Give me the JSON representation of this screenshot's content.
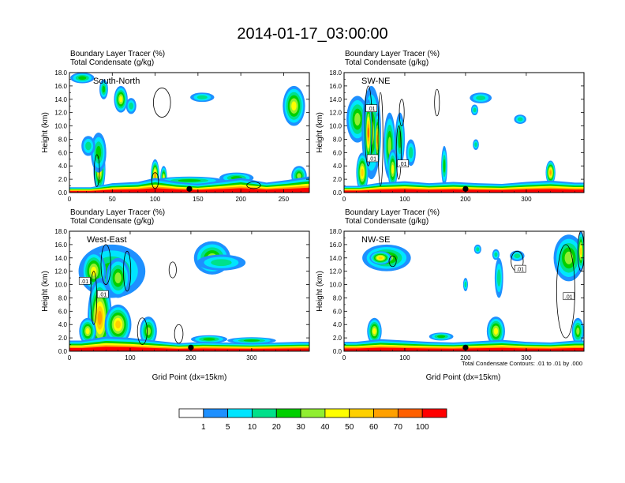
{
  "title": "2014-01-17_03:00:00",
  "colors": {
    "levels": [
      "#ffffff",
      "#1e90ff",
      "#00e5ff",
      "#00e08a",
      "#00d000",
      "#90ee30",
      "#ffff00",
      "#ffd000",
      "#ffa000",
      "#ff6000",
      "#ff0000"
    ],
    "contour": "#000000",
    "marker": "#000000"
  },
  "footnote": "Total Condensate Contours: .01 to .01 by .000",
  "colorbar": {
    "labels": [
      "1",
      "5",
      "10",
      "20",
      "30",
      "40",
      "50",
      "60",
      "70",
      "100"
    ]
  },
  "chart_data": [
    {
      "type": "heatmap",
      "id": "south-north",
      "title_line1": "Boundary Layer Tracer   (%)",
      "title_line2": "Total Condensate   (g/kg)",
      "region_label": "South-North",
      "xlabel": "",
      "ylabel": "Height (km)",
      "xlim": [
        0,
        280
      ],
      "ylim": [
        0,
        18
      ],
      "xticks": [
        0,
        50,
        100,
        150,
        200,
        250
      ],
      "yticks": [
        0.0,
        2.0,
        4.0,
        6.0,
        8.0,
        10.0,
        12.0,
        14.0,
        16.0,
        18.0
      ],
      "marker_x": 140,
      "contour_labels": [],
      "plumes": [
        {
          "x": 15,
          "y": 17.2,
          "w": 14,
          "h": 0.8,
          "v": 20
        },
        {
          "x": 40,
          "y": 15.5,
          "w": 5,
          "h": 1.5,
          "v": 20
        },
        {
          "x": 60,
          "y": 14,
          "w": 8,
          "h": 2,
          "v": 40
        },
        {
          "x": 72,
          "y": 13,
          "w": 6,
          "h": 1.2,
          "v": 10
        },
        {
          "x": 35,
          "y": 3.5,
          "w": 7,
          "h": 3.5,
          "v": 50
        },
        {
          "x": 34,
          "y": 6,
          "w": 9,
          "h": 3,
          "v": 20
        },
        {
          "x": 22,
          "y": 7,
          "w": 8,
          "h": 1.5,
          "v": 10
        },
        {
          "x": 100,
          "y": 2.5,
          "w": 5,
          "h": 2.5,
          "v": 60
        },
        {
          "x": 110,
          "y": 2.2,
          "w": 4,
          "h": 1.8,
          "v": 40
        },
        {
          "x": 155,
          "y": 14.3,
          "w": 14,
          "h": 0.7,
          "v": 10
        },
        {
          "x": 262,
          "y": 13,
          "w": 13,
          "h": 3,
          "v": 40
        },
        {
          "x": 268,
          "y": 2.5,
          "w": 9,
          "h": 1.5,
          "v": 30
        },
        {
          "x": 195,
          "y": 2.2,
          "w": 20,
          "h": 0.8,
          "v": 20
        },
        {
          "x": 140,
          "y": 1.8,
          "w": 40,
          "h": 0.6,
          "v": 20
        }
      ],
      "surface": [
        {
          "x": 25,
          "h": 0.8
        },
        {
          "x": 50,
          "h": 1.4
        },
        {
          "x": 80,
          "h": 1.6
        },
        {
          "x": 100,
          "h": 2.2
        },
        {
          "x": 125,
          "h": 1.6
        },
        {
          "x": 150,
          "h": 1.3
        },
        {
          "x": 180,
          "h": 1.8
        },
        {
          "x": 200,
          "h": 2.2
        },
        {
          "x": 230,
          "h": 1.5
        },
        {
          "x": 255,
          "h": 1.9
        },
        {
          "x": 278,
          "h": 2.4
        }
      ],
      "contours": [
        {
          "x": 108,
          "y": 13.5,
          "w": 10,
          "h": 2.2
        },
        {
          "x": 32,
          "y": 3.3,
          "w": 3,
          "h": 2.4
        },
        {
          "x": 100,
          "y": 1.8,
          "w": 4,
          "h": 1.2
        },
        {
          "x": 215,
          "y": 1.1,
          "w": 8,
          "h": 0.5
        }
      ]
    },
    {
      "type": "heatmap",
      "id": "sw-ne",
      "title_line1": "Boundary Layer Tracer   (%)",
      "title_line2": "Total Condensate   (g/kg)",
      "region_label": "SW-NE",
      "xlabel": "",
      "ylabel": "Height (km)",
      "xlim": [
        0,
        395
      ],
      "ylim": [
        0,
        18
      ],
      "xticks": [
        0,
        100,
        200,
        300
      ],
      "yticks": [
        0.0,
        2.0,
        4.0,
        6.0,
        8.0,
        10.0,
        12.0,
        14.0,
        16.0,
        18.0
      ],
      "marker_x": 200,
      "contour_labels": [
        {
          "x": 45,
          "y": 12.6,
          "text": ".01"
        },
        {
          "x": 47,
          "y": 5.1,
          "text": ".01"
        },
        {
          "x": 97,
          "y": 4.3,
          "text": ".01"
        }
      ],
      "plumes": [
        {
          "x": 22,
          "y": 11,
          "w": 18,
          "h": 3.5,
          "v": 30
        },
        {
          "x": 45,
          "y": 9,
          "w": 16,
          "h": 7,
          "v": 30
        },
        {
          "x": 40,
          "y": 9,
          "w": 6,
          "h": 5,
          "v": 70
        },
        {
          "x": 55,
          "y": 8,
          "w": 5,
          "h": 4,
          "v": 60
        },
        {
          "x": 75,
          "y": 7,
          "w": 10,
          "h": 5,
          "v": 30
        },
        {
          "x": 92,
          "y": 8,
          "w": 8,
          "h": 4,
          "v": 20
        },
        {
          "x": 30,
          "y": 3,
          "w": 10,
          "h": 3,
          "v": 50
        },
        {
          "x": 80,
          "y": 3.5,
          "w": 8,
          "h": 3,
          "v": 40
        },
        {
          "x": 165,
          "y": 4,
          "w": 5,
          "h": 3,
          "v": 20
        },
        {
          "x": 225,
          "y": 14.2,
          "w": 18,
          "h": 0.8,
          "v": 10
        },
        {
          "x": 215,
          "y": 12.4,
          "w": 6,
          "h": 0.8,
          "v": 10
        },
        {
          "x": 290,
          "y": 11,
          "w": 10,
          "h": 0.7,
          "v": 10
        },
        {
          "x": 217,
          "y": 7.2,
          "w": 5,
          "h": 0.8,
          "v": 10
        },
        {
          "x": 340,
          "y": 3,
          "w": 8,
          "h": 1.8,
          "v": 60
        },
        {
          "x": 110,
          "y": 6,
          "w": 8,
          "h": 2,
          "v": 10
        }
      ],
      "surface": [
        {
          "x": 25,
          "h": 1.0
        },
        {
          "x": 60,
          "h": 1.5
        },
        {
          "x": 100,
          "h": 1.7
        },
        {
          "x": 140,
          "h": 1.4
        },
        {
          "x": 180,
          "h": 1.6
        },
        {
          "x": 220,
          "h": 1.4
        },
        {
          "x": 260,
          "h": 1.3
        },
        {
          "x": 300,
          "h": 1.6
        },
        {
          "x": 340,
          "h": 1.8
        },
        {
          "x": 380,
          "h": 1.5
        }
      ],
      "contours": [
        {
          "x": 40,
          "y": 10,
          "w": 6,
          "h": 6
        },
        {
          "x": 60,
          "y": 8,
          "w": 4,
          "h": 7
        },
        {
          "x": 90,
          "y": 6,
          "w": 4,
          "h": 4
        },
        {
          "x": 95,
          "y": 12,
          "w": 4,
          "h": 2
        },
        {
          "x": 153,
          "y": 13.5,
          "w": 4,
          "h": 2
        }
      ]
    },
    {
      "type": "heatmap",
      "id": "west-east",
      "title_line1": "Boundary Layer Tracer   (%)",
      "title_line2": "Total Condensate   (g/kg)",
      "region_label": "West-East",
      "xlabel": "Grid Point (dx=15km)",
      "ylabel": "Height (km)",
      "xlim": [
        0,
        395
      ],
      "ylim": [
        0,
        18
      ],
      "xticks": [
        0,
        100,
        200,
        300
      ],
      "yticks": [
        0.0,
        2.0,
        4.0,
        6.0,
        8.0,
        10.0,
        12.0,
        14.0,
        16.0,
        18.0
      ],
      "marker_x": 200,
      "contour_labels": [
        {
          "x": 25,
          "y": 10.5,
          "text": ".01"
        },
        {
          "x": 55,
          "y": 8.5,
          "text": ".01"
        }
      ],
      "plumes": [
        {
          "x": 70,
          "y": 12,
          "w": 55,
          "h": 4,
          "v": 20
        },
        {
          "x": 40,
          "y": 12,
          "w": 20,
          "h": 3,
          "v": 40
        },
        {
          "x": 80,
          "y": 11,
          "w": 20,
          "h": 3,
          "v": 30
        },
        {
          "x": 50,
          "y": 5,
          "w": 20,
          "h": 6,
          "v": 60
        },
        {
          "x": 80,
          "y": 4,
          "w": 22,
          "h": 3,
          "v": 50
        },
        {
          "x": 30,
          "y": 3,
          "w": 14,
          "h": 2,
          "v": 40
        },
        {
          "x": 130,
          "y": 3,
          "w": 14,
          "h": 2.2,
          "v": 30
        },
        {
          "x": 235,
          "y": 14,
          "w": 30,
          "h": 2.5,
          "v": 30
        },
        {
          "x": 250,
          "y": 13.3,
          "w": 40,
          "h": 1.2,
          "v": 10
        },
        {
          "x": 230,
          "y": 1.8,
          "w": 30,
          "h": 0.6,
          "v": 20
        },
        {
          "x": 300,
          "y": 1.6,
          "w": 40,
          "h": 0.5,
          "v": 20
        }
      ],
      "surface": [
        {
          "x": 20,
          "h": 1.6
        },
        {
          "x": 60,
          "h": 2.2
        },
        {
          "x": 100,
          "h": 2.0
        },
        {
          "x": 140,
          "h": 1.6
        },
        {
          "x": 180,
          "h": 1.2
        },
        {
          "x": 220,
          "h": 1.4
        },
        {
          "x": 260,
          "h": 1.3
        },
        {
          "x": 300,
          "h": 1.2
        },
        {
          "x": 340,
          "h": 1.3
        },
        {
          "x": 380,
          "h": 1.4
        }
      ],
      "contours": [
        {
          "x": 60,
          "y": 13,
          "w": 8,
          "h": 3
        },
        {
          "x": 40,
          "y": 8,
          "w": 5,
          "h": 4
        },
        {
          "x": 95,
          "y": 12,
          "w": 6,
          "h": 3
        },
        {
          "x": 170,
          "y": 12.2,
          "w": 6,
          "h": 1.2
        },
        {
          "x": 120,
          "y": 3,
          "w": 8,
          "h": 2
        },
        {
          "x": 180,
          "y": 2.6,
          "w": 7,
          "h": 1.4
        }
      ]
    },
    {
      "type": "heatmap",
      "id": "nw-se",
      "title_line1": "Boundary Layer Tracer   (%)",
      "title_line2": "Total Condensate   (g/kg)",
      "region_label": "NW-SE",
      "xlabel": "Grid Point (dx=15km)",
      "ylabel": "Height (km)",
      "xlim": [
        0,
        395
      ],
      "ylim": [
        0,
        18
      ],
      "xticks": [
        0,
        100,
        200,
        300
      ],
      "yticks": [
        0.0,
        2.0,
        4.0,
        6.0,
        8.0,
        10.0,
        12.0,
        14.0,
        16.0,
        18.0
      ],
      "marker_x": 200,
      "contour_labels": [
        {
          "x": 290,
          "y": 12.3,
          "text": ".01"
        },
        {
          "x": 370,
          "y": 8.2,
          "text": ".01"
        }
      ],
      "plumes": [
        {
          "x": 70,
          "y": 14,
          "w": 40,
          "h": 2,
          "v": 30
        },
        {
          "x": 60,
          "y": 14,
          "w": 18,
          "h": 1,
          "v": 50
        },
        {
          "x": 370,
          "y": 14,
          "w": 25,
          "h": 3.5,
          "v": 30
        },
        {
          "x": 390,
          "y": 15,
          "w": 6,
          "h": 3,
          "v": 50
        },
        {
          "x": 285,
          "y": 14.3,
          "w": 12,
          "h": 0.8,
          "v": 10
        },
        {
          "x": 220,
          "y": 15.3,
          "w": 6,
          "h": 0.7,
          "v": 10
        },
        {
          "x": 250,
          "y": 14.5,
          "w": 6,
          "h": 0.8,
          "v": 10
        },
        {
          "x": 255,
          "y": 11,
          "w": 7,
          "h": 3,
          "v": 10
        },
        {
          "x": 200,
          "y": 10,
          "w": 4,
          "h": 1,
          "v": 10
        },
        {
          "x": 50,
          "y": 3,
          "w": 12,
          "h": 2,
          "v": 40
        },
        {
          "x": 250,
          "y": 3,
          "w": 15,
          "h": 2.2,
          "v": 40
        },
        {
          "x": 385,
          "y": 3,
          "w": 10,
          "h": 2,
          "v": 30
        },
        {
          "x": 160,
          "y": 2.2,
          "w": 20,
          "h": 0.6,
          "v": 20
        }
      ],
      "surface": [
        {
          "x": 20,
          "h": 1.4
        },
        {
          "x": 60,
          "h": 1.8
        },
        {
          "x": 100,
          "h": 1.6
        },
        {
          "x": 140,
          "h": 1.4
        },
        {
          "x": 180,
          "h": 1.3
        },
        {
          "x": 220,
          "h": 1.5
        },
        {
          "x": 260,
          "h": 1.7
        },
        {
          "x": 300,
          "h": 1.4
        },
        {
          "x": 340,
          "h": 1.3
        },
        {
          "x": 380,
          "h": 1.6
        }
      ],
      "contours": [
        {
          "x": 285,
          "y": 13.5,
          "w": 10,
          "h": 1.5
        },
        {
          "x": 365,
          "y": 9,
          "w": 15,
          "h": 7
        },
        {
          "x": 80,
          "y": 13.5,
          "w": 6,
          "h": 0.8
        },
        {
          "x": 390,
          "y": 15,
          "w": 5,
          "h": 3
        }
      ]
    }
  ]
}
